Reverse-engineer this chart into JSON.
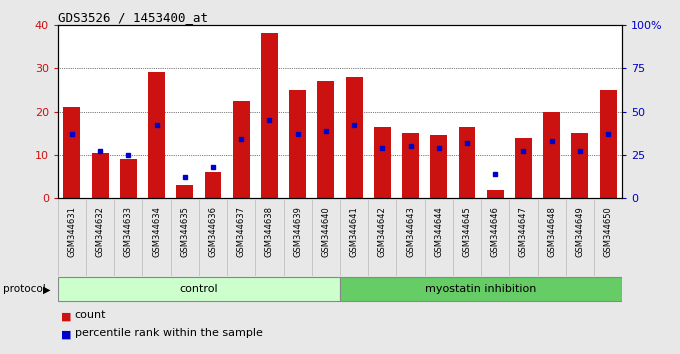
{
  "title": "GDS3526 / 1453400_at",
  "samples": [
    "GSM344631",
    "GSM344632",
    "GSM344633",
    "GSM344634",
    "GSM344635",
    "GSM344636",
    "GSM344637",
    "GSM344638",
    "GSM344639",
    "GSM344640",
    "GSM344641",
    "GSM344642",
    "GSM344643",
    "GSM344644",
    "GSM344645",
    "GSM344646",
    "GSM344647",
    "GSM344648",
    "GSM344649",
    "GSM344650"
  ],
  "counts": [
    21,
    10.5,
    9,
    29,
    3,
    6,
    22.5,
    38,
    25,
    27,
    28,
    16.5,
    15,
    14.5,
    16.5,
    2,
    14,
    20,
    15,
    25
  ],
  "percentile_ranks": [
    37,
    27,
    25,
    42,
    12,
    18,
    34,
    45,
    37,
    39,
    42,
    29,
    30,
    29,
    32,
    14,
    27,
    33,
    27,
    37
  ],
  "n_control": 10,
  "n_myostatin": 10,
  "control_color": "#ccffcc",
  "myostatin_color": "#66cc66",
  "bar_color": "#cc1111",
  "dot_color": "#0000cc",
  "ylim_left": [
    0,
    40
  ],
  "ylim_right": [
    0,
    100
  ],
  "yticks_left": [
    0,
    10,
    20,
    30,
    40
  ],
  "yticks_right": [
    0,
    25,
    50,
    75,
    100
  ],
  "ytick_labels_right": [
    "0",
    "25",
    "50",
    "75",
    "100%"
  ],
  "ygrid_lines": [
    10,
    20,
    30
  ],
  "background_color": "#e8e8e8",
  "plot_bg": "#ffffff",
  "xtick_bg": "#d8d8d8",
  "legend_count_label": "count",
  "legend_pct_label": "percentile rank within the sample",
  "title_fontsize": 9,
  "bar_fontsize": 6.5,
  "proto_fontsize": 8,
  "legend_fontsize": 8
}
